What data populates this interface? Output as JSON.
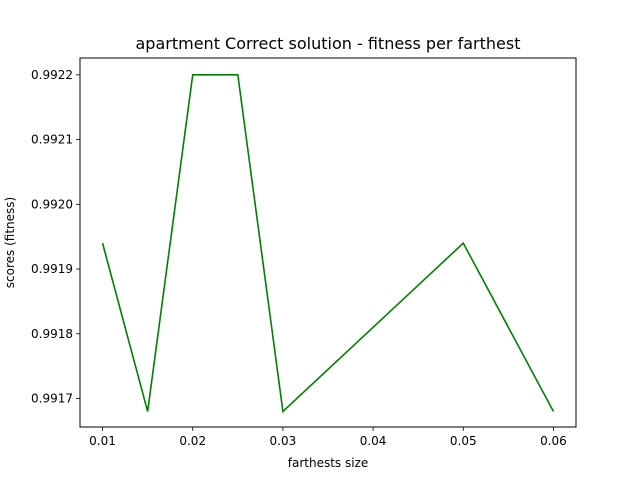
{
  "chart_data": {
    "type": "line",
    "title": "apartment Correct solution - fitness per farthest",
    "xlabel": "farthests size",
    "ylabel": "scores (fitness)",
    "x": [
      0.01,
      0.015,
      0.02,
      0.025,
      0.03,
      0.04,
      0.05,
      0.06
    ],
    "series": [
      {
        "values": [
          0.99194,
          0.99168,
          0.9922,
          0.9922,
          0.99168,
          0.99181,
          0.99194,
          0.99168
        ],
        "color": "#008000"
      }
    ],
    "xlim": [
      0.0075,
      0.0625
    ],
    "ylim": [
      0.991656,
      0.992226
    ],
    "xticks": [
      0.01,
      0.02,
      0.03,
      0.04,
      0.05,
      0.06
    ],
    "xtick_labels": [
      "0.01",
      "0.02",
      "0.03",
      "0.04",
      "0.05",
      "0.06"
    ],
    "yticks": [
      0.9917,
      0.9918,
      0.9919,
      0.992,
      0.9921,
      0.9922
    ],
    "ytick_labels": [
      "0.9917",
      "0.9918",
      "0.9919",
      "0.9920",
      "0.9921",
      "0.9922"
    ],
    "grid": false,
    "legend": false
  }
}
